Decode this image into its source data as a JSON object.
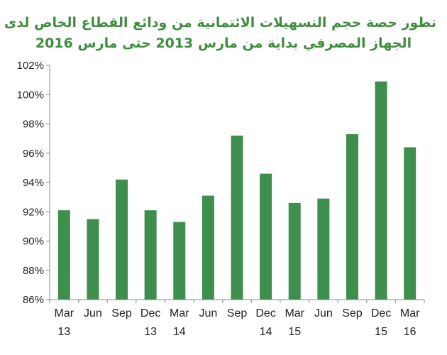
{
  "chart_data": {
    "type": "bar",
    "title_line1": "تطور حصة حجم التسهيلات الائتمانية من ودائع القطاع الخاص لدى",
    "title_line2": "الجهاز المصرفي بداية من مارس 2013 حتى مارس 2016",
    "categories": [
      "Mar 13",
      "Jun",
      "Sep",
      "Dec 13",
      "Mar 14",
      "Jun",
      "Sep",
      "Dec 14",
      "Mar 15",
      "Jun",
      "Sep",
      "Dec 15",
      "Mar 16"
    ],
    "category_lines": [
      [
        "Mar",
        "13"
      ],
      [
        "Jun",
        ""
      ],
      [
        "Sep",
        ""
      ],
      [
        "Dec",
        "13"
      ],
      [
        "Mar",
        "14"
      ],
      [
        "Jun",
        ""
      ],
      [
        "Sep",
        ""
      ],
      [
        "Dec",
        "14"
      ],
      [
        "Mar",
        "15"
      ],
      [
        "Jun",
        ""
      ],
      [
        "Sep",
        ""
      ],
      [
        "Dec",
        "15"
      ],
      [
        "Mar",
        "16"
      ]
    ],
    "values": [
      92.1,
      91.5,
      94.2,
      92.1,
      91.3,
      93.1,
      97.2,
      94.6,
      92.6,
      92.9,
      97.3,
      100.9,
      96.4
    ],
    "unit": "%",
    "ylim": [
      86,
      102
    ],
    "yticks": [
      86,
      88,
      90,
      92,
      94,
      96,
      98,
      100,
      102
    ],
    "ytick_labels": [
      "86%",
      "88%",
      "90%",
      "92%",
      "94%",
      "96%",
      "98%",
      "100%",
      "102%"
    ],
    "xlabel": "",
    "ylabel": "",
    "bar_color": "#3e8e4e",
    "title_color": "#3e8e3e",
    "grid": false,
    "legend": "none"
  }
}
